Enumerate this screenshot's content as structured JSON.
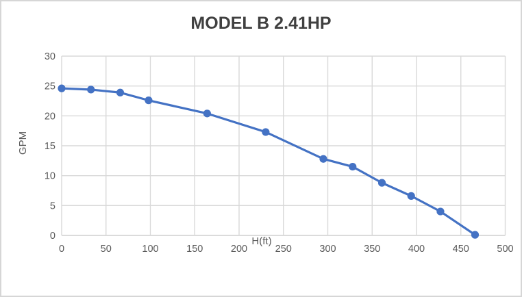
{
  "chart_data": {
    "type": "line",
    "title": "MODEL B 2.41HP",
    "xlabel": "H(ft)",
    "ylabel": "GPM",
    "x": [
      0,
      33,
      66,
      98,
      164,
      230,
      295,
      328,
      361,
      394,
      427,
      466
    ],
    "y": [
      24.6,
      24.4,
      23.9,
      22.6,
      20.4,
      17.3,
      12.8,
      11.5,
      8.8,
      6.6,
      4.0,
      0.1
    ],
    "xlim": [
      0,
      500
    ],
    "ylim": [
      0,
      30
    ],
    "x_ticks": [
      0,
      50,
      100,
      150,
      200,
      250,
      300,
      350,
      400,
      450,
      500
    ],
    "y_ticks": [
      0,
      5,
      10,
      15,
      20,
      25,
      30
    ],
    "grid": true,
    "legend": "none",
    "colors": {
      "series": "#4472C4",
      "gridline": "#D9D9D9",
      "axis_line": "#CFCFCF",
      "tick_label": "#595959",
      "axis_title": "#595959",
      "title": "#404040",
      "background": "#FFFFFF",
      "frame_border": "#D6D6D6"
    }
  }
}
